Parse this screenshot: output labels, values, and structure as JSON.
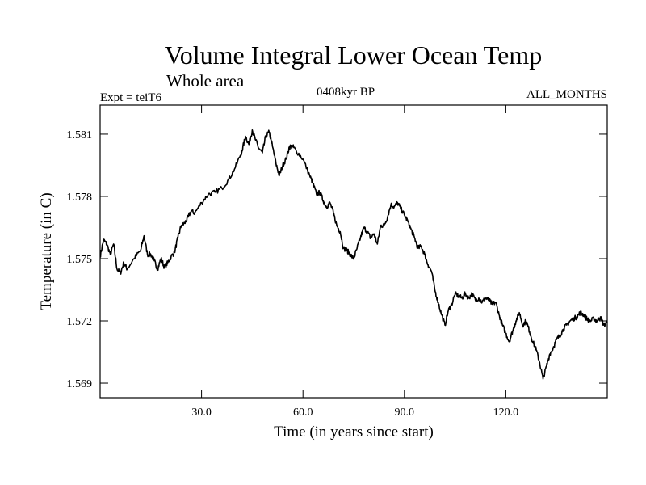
{
  "header": {
    "title": "Volume Integral Lower Ocean Temp",
    "subtitle": "Whole area",
    "experiment": "Expt = teiT6",
    "period": "0408kyr BP",
    "months": "ALL_MONTHS"
  },
  "chart_data": {
    "type": "line",
    "title": "Volume Integral Lower Ocean Temp",
    "subtitle": "Whole area",
    "xlabel": "Time (in years since start)",
    "ylabel": "Temperature (in C)",
    "xlim": [
      0,
      150
    ],
    "ylim": [
      1.5683,
      1.5824
    ],
    "x_ticks": [
      30,
      60,
      90,
      120
    ],
    "x_tick_labels": [
      "30.0",
      "60.0",
      "90.0",
      "120.0"
    ],
    "y_ticks": [
      1.569,
      1.572,
      1.575,
      1.578,
      1.581
    ],
    "y_tick_labels": [
      "1.569",
      "1.572",
      "1.575",
      "1.578",
      "1.581"
    ],
    "grid": false,
    "series": [
      {
        "name": "Volume Integral Lower Ocean Temp",
        "color": "#000000",
        "x": [
          0,
          1,
          2,
          3,
          4,
          5,
          6,
          7,
          8,
          10,
          12,
          13,
          14,
          15,
          16,
          17,
          18,
          19,
          20,
          21,
          22,
          23,
          24,
          25,
          26,
          27,
          28,
          30,
          32,
          34,
          36,
          38,
          40,
          42,
          43,
          44,
          45,
          46,
          47,
          48,
          49,
          50,
          51,
          52,
          53,
          54,
          55,
          56,
          57,
          58,
          60,
          62,
          63,
          64,
          65,
          66,
          67,
          68,
          69,
          70,
          71,
          72,
          73,
          74,
          75,
          76,
          77,
          78,
          79,
          80,
          81,
          82,
          83,
          84,
          85,
          86,
          87,
          88,
          89,
          90,
          91,
          92,
          93,
          94,
          95,
          96,
          97,
          98,
          99,
          100,
          101,
          102,
          103,
          104,
          105,
          106,
          107,
          108,
          109,
          110,
          111,
          112,
          113,
          114,
          115,
          116,
          117,
          118,
          119,
          120,
          121,
          122,
          123,
          124,
          125,
          126,
          127,
          128,
          129,
          130,
          131,
          132,
          133,
          134,
          135,
          136,
          137,
          138,
          139,
          140,
          141,
          142,
          143,
          144,
          145,
          146,
          147,
          148,
          149,
          150
        ],
        "values": [
          1.5751,
          1.5759,
          1.5757,
          1.5752,
          1.5757,
          1.5745,
          1.5743,
          1.5748,
          1.5745,
          1.575,
          1.5754,
          1.5761,
          1.5752,
          1.5752,
          1.5749,
          1.5745,
          1.575,
          1.5746,
          1.5748,
          1.5751,
          1.5753,
          1.576,
          1.5766,
          1.5767,
          1.577,
          1.5773,
          1.5772,
          1.5777,
          1.5781,
          1.5782,
          1.5784,
          1.5788,
          1.5794,
          1.5802,
          1.5809,
          1.5805,
          1.5812,
          1.5807,
          1.5803,
          1.5801,
          1.5809,
          1.5811,
          1.5804,
          1.5796,
          1.579,
          1.5795,
          1.5798,
          1.5804,
          1.5804,
          1.5802,
          1.5798,
          1.579,
          1.5786,
          1.5781,
          1.5782,
          1.5778,
          1.5775,
          1.5777,
          1.5772,
          1.5766,
          1.5763,
          1.5755,
          1.5754,
          1.5752,
          1.575,
          1.5755,
          1.576,
          1.5765,
          1.5763,
          1.576,
          1.5762,
          1.5757,
          1.5766,
          1.5766,
          1.577,
          1.5776,
          1.5775,
          1.5777,
          1.5774,
          1.5771,
          1.5768,
          1.5764,
          1.576,
          1.5755,
          1.5756,
          1.5752,
          1.5747,
          1.5744,
          1.5735,
          1.5729,
          1.5723,
          1.5718,
          1.5725,
          1.5728,
          1.5733,
          1.5732,
          1.5731,
          1.5733,
          1.5731,
          1.5733,
          1.573,
          1.5731,
          1.5729,
          1.5731,
          1.573,
          1.5728,
          1.5729,
          1.5723,
          1.5718,
          1.5714,
          1.571,
          1.5715,
          1.572,
          1.5724,
          1.5718,
          1.572,
          1.5715,
          1.571,
          1.5706,
          1.57,
          1.5692,
          1.5698,
          1.5704,
          1.5707,
          1.5711,
          1.5713,
          1.5716,
          1.5718,
          1.572,
          1.5721,
          1.5722,
          1.5724,
          1.5723,
          1.5721,
          1.572,
          1.5721,
          1.572,
          1.5722,
          1.5718,
          1.5719
        ]
      }
    ]
  }
}
